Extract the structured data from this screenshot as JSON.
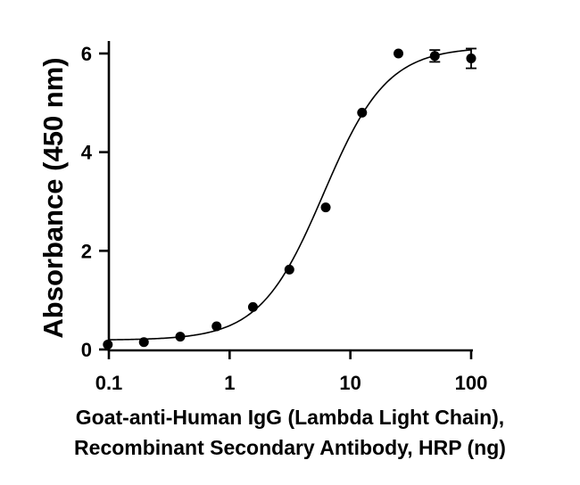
{
  "chart_data": {
    "type": "scatter",
    "title": "",
    "xlabel_lines": [
      "Goat-anti-Human IgG (Lambda Light Chain),",
      "Recombinant Secondary Antibody, HRP (ng)"
    ],
    "ylabel": "Absorbance (450 nm)",
    "x_scale": "log",
    "xlim": [
      0.1,
      100
    ],
    "ylim": [
      0,
      6.2
    ],
    "x_ticks": [
      {
        "value": 0.1,
        "label": "0.1"
      },
      {
        "value": 1,
        "label": "1"
      },
      {
        "value": 10,
        "label": "10"
      },
      {
        "value": 100,
        "label": "100"
      }
    ],
    "y_ticks": [
      {
        "value": 0,
        "label": "0"
      },
      {
        "value": 2,
        "label": "2"
      },
      {
        "value": 4,
        "label": "4"
      },
      {
        "value": 6,
        "label": "6"
      }
    ],
    "points": [
      {
        "x": 0.098,
        "y": 0.1
      },
      {
        "x": 0.195,
        "y": 0.15
      },
      {
        "x": 0.39,
        "y": 0.26
      },
      {
        "x": 0.78,
        "y": 0.47
      },
      {
        "x": 1.56,
        "y": 0.86
      },
      {
        "x": 3.125,
        "y": 1.62
      },
      {
        "x": 6.25,
        "y": 2.88
      },
      {
        "x": 12.5,
        "y": 4.8
      },
      {
        "x": 25,
        "y": 6.0
      },
      {
        "x": 50,
        "y": 5.95,
        "err": 0.12
      },
      {
        "x": 100,
        "y": 5.9,
        "err": 0.2
      }
    ],
    "fit": {
      "model": "4PL",
      "bottom": 0.19,
      "top": 6.13,
      "ec50": 6.0,
      "hill": 1.65
    },
    "grid": false,
    "legend": "none",
    "colors": {
      "points": "#000000",
      "curve": "#000000",
      "axes": "#000000"
    }
  }
}
